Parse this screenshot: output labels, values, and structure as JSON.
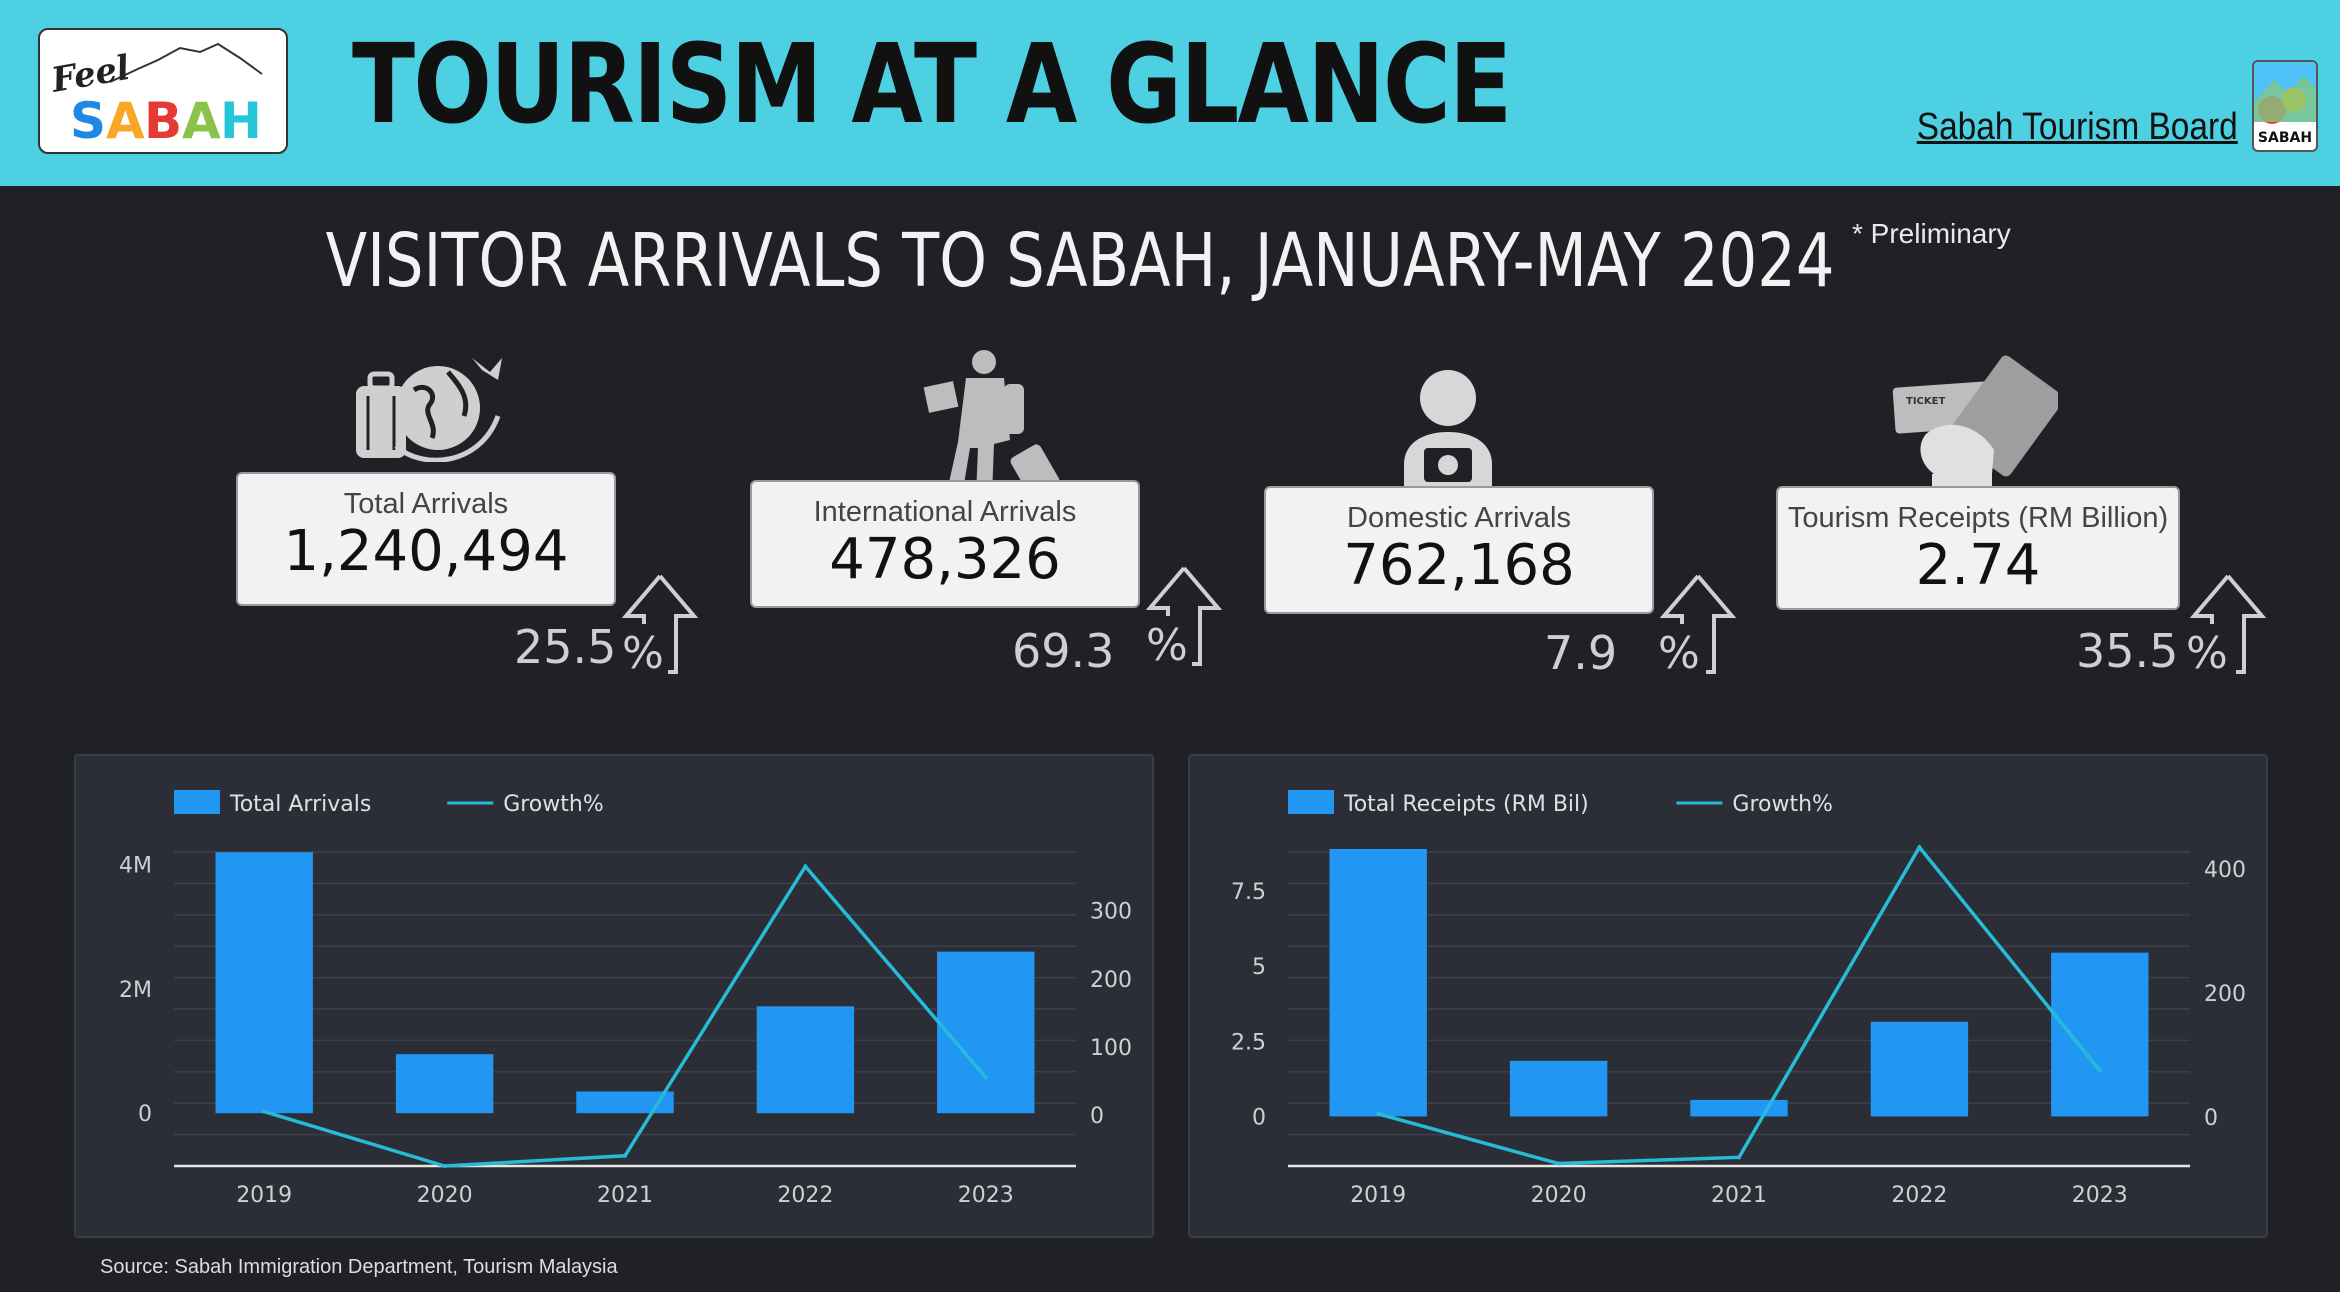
{
  "header": {
    "logo_text_top": "Feel",
    "logo_text_main": "SABAH",
    "title": "TOURISM AT A GLANCE",
    "board_name": "Sabah Tourism Board",
    "board_logo_text": "SABAH"
  },
  "subtitle": "VISITOR ARRIVALS TO SABAH, JANUARY-MAY 2024",
  "preliminary_note": "* Preliminary",
  "kpis": [
    {
      "label": "Total Arrivals",
      "value": "1,240,494",
      "growth": "25.5",
      "unit": "%",
      "icon": "luggage-globe-icon"
    },
    {
      "label": "International Arrivals",
      "value": "478,326",
      "growth": "69.3",
      "unit": "%",
      "icon": "traveler-icon"
    },
    {
      "label": "Domestic Arrivals",
      "value": "762,168",
      "growth": "7.9",
      "unit": "%",
      "icon": "photographer-icon"
    },
    {
      "label": "Tourism Receipts (RM Billion)",
      "value": "2.74",
      "growth": "35.5",
      "unit": "%",
      "icon": "ticket-card-icon"
    }
  ],
  "chart_data": [
    {
      "type": "bar",
      "categories": [
        "2019",
        "2020",
        "2021",
        "2022",
        "2023"
      ],
      "series": [
        {
          "name": "Total Arrivals",
          "type": "bar",
          "axis": "left",
          "values": [
            4200000,
            950000,
            350000,
            1720000,
            2600000
          ]
        },
        {
          "name": "Growth%",
          "type": "line",
          "axis": "right",
          "values": [
            5,
            -75,
            -60,
            365,
            55
          ]
        }
      ],
      "y_left": {
        "ticks": [
          "0",
          "2M",
          "4M"
        ],
        "tick_values": [
          0,
          2000000,
          4000000
        ],
        "range": [
          -850000,
          4300000
        ]
      },
      "y_right": {
        "ticks": [
          "0",
          "100",
          "200",
          "300"
        ],
        "tick_values": [
          0,
          100,
          200,
          300
        ],
        "range": [
          -75,
          395
        ]
      },
      "colors": {
        "bar": "#2196f3",
        "line": "#26bcd7"
      },
      "grid": true,
      "legend": "top-left"
    },
    {
      "type": "bar",
      "categories": [
        "2019",
        "2020",
        "2021",
        "2022",
        "2023"
      ],
      "series": [
        {
          "name": "Total Receipts (RM Bil)",
          "type": "bar",
          "axis": "left",
          "values": [
            8.9,
            1.85,
            0.55,
            3.15,
            5.45
          ]
        },
        {
          "name": "Growth%",
          "type": "line",
          "axis": "right",
          "values": [
            5,
            -75,
            -65,
            435,
            75
          ]
        }
      ],
      "y_left": {
        "ticks": [
          "0",
          "2.5",
          "5",
          "7.5"
        ],
        "tick_values": [
          0,
          2.5,
          5,
          7.5
        ],
        "range": [
          -1.65,
          9.0
        ]
      },
      "y_right": {
        "ticks": [
          "0",
          "200",
          "400"
        ],
        "tick_values": [
          0,
          200,
          400
        ],
        "range": [
          -79,
          437
        ]
      },
      "colors": {
        "bar": "#2196f3",
        "line": "#26bcd7"
      },
      "grid": true,
      "legend": "top-left"
    }
  ],
  "source": "Source: Sabah Immigration Department, Tourism Malaysia"
}
